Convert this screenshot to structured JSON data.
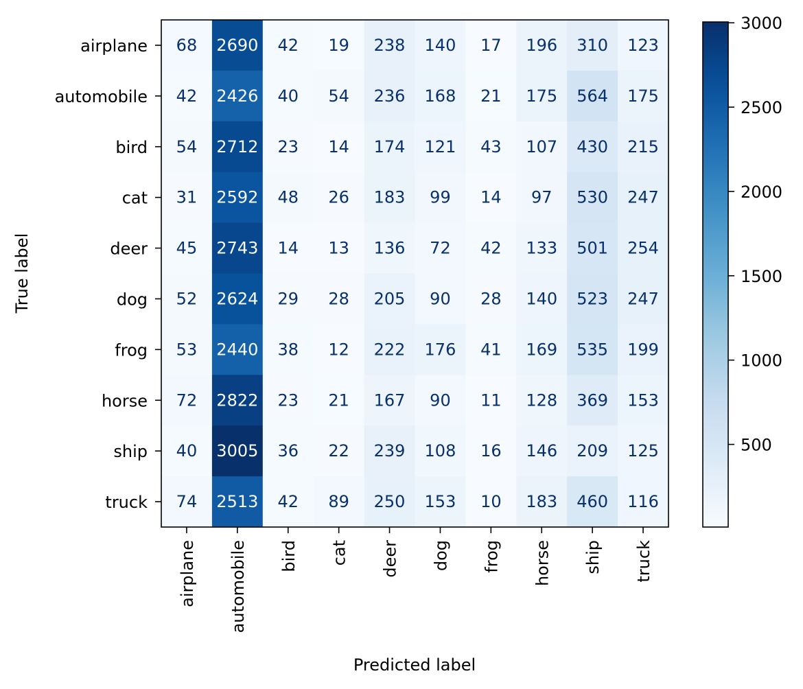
{
  "chart_data": {
    "type": "heatmap",
    "title": "",
    "xlabel": "Predicted label",
    "ylabel": "True label",
    "x_categories": [
      "airplane",
      "automobile",
      "bird",
      "cat",
      "deer",
      "dog",
      "frog",
      "horse",
      "ship",
      "truck"
    ],
    "y_categories": [
      "airplane",
      "automobile",
      "bird",
      "cat",
      "deer",
      "dog",
      "frog",
      "horse",
      "ship",
      "truck"
    ],
    "values": [
      [
        68,
        2690,
        42,
        19,
        238,
        140,
        17,
        196,
        310,
        123
      ],
      [
        42,
        2426,
        40,
        54,
        236,
        168,
        21,
        175,
        564,
        175
      ],
      [
        54,
        2712,
        23,
        14,
        174,
        121,
        43,
        107,
        430,
        215
      ],
      [
        31,
        2592,
        48,
        26,
        183,
        99,
        14,
        97,
        530,
        247
      ],
      [
        45,
        2743,
        14,
        13,
        136,
        72,
        42,
        133,
        501,
        254
      ],
      [
        52,
        2624,
        29,
        28,
        205,
        90,
        28,
        140,
        523,
        247
      ],
      [
        53,
        2440,
        38,
        12,
        222,
        176,
        41,
        169,
        535,
        199
      ],
      [
        72,
        2822,
        23,
        21,
        167,
        90,
        11,
        128,
        369,
        153
      ],
      [
        40,
        3005,
        36,
        22,
        239,
        108,
        16,
        146,
        209,
        125
      ],
      [
        74,
        2513,
        42,
        89,
        250,
        153,
        10,
        183,
        460,
        116
      ]
    ],
    "colormap": "Blues",
    "colorbar": {
      "min": 10,
      "max": 3005,
      "ticks": [
        500,
        1000,
        1500,
        2000,
        2500,
        3000
      ]
    },
    "colors": {
      "text_light_cells": "#08306b",
      "text_dark_cells": "#f7fbff"
    },
    "grid": false
  }
}
